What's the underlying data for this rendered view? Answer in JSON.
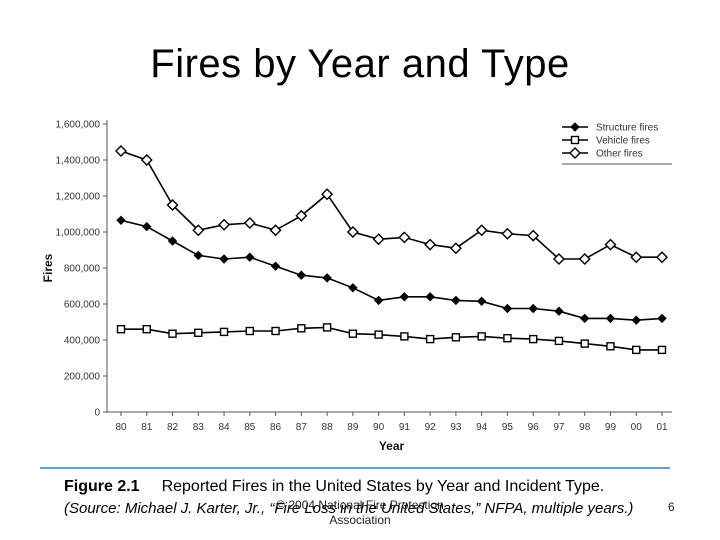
{
  "slide": {
    "title": "Fires by Year and Type",
    "caption_figure": "Figure 2.1",
    "caption_text": "Reported Fires in the United States by Year and Incident Type.",
    "caption_source": "(Source: Michael J. Karter, Jr., “Fire Loss in the United States,” NFPA, multiple years.)",
    "copyright_line1": "© 2004 National Fire Protection",
    "copyright_line2": "Association",
    "page_number": "6"
  },
  "chart_data": {
    "type": "line",
    "title": "",
    "xlabel": "Year",
    "ylabel": "Fires",
    "categories": [
      "80",
      "81",
      "82",
      "83",
      "84",
      "85",
      "86",
      "87",
      "88",
      "89",
      "90",
      "91",
      "92",
      "93",
      "94",
      "95",
      "96",
      "97",
      "98",
      "99",
      "00",
      "01"
    ],
    "y_ticks": [
      0,
      200000,
      400000,
      600000,
      800000,
      1000000,
      1200000,
      1400000,
      1600000
    ],
    "y_tick_labels": [
      "0",
      "200,000",
      "400,000",
      "600,000",
      "800,000",
      "1,000,000",
      "1,200,000",
      "1,400,000",
      "1,600,000"
    ],
    "ylim": [
      0,
      1600000
    ],
    "grid": false,
    "legend_position": "top-right",
    "series": [
      {
        "name": "Structure fires",
        "marker": "filled-diamond",
        "values": [
          1065000,
          1030000,
          950000,
          870000,
          850000,
          860000,
          810000,
          760000,
          745000,
          690000,
          620000,
          640000,
          640000,
          620000,
          615000,
          575000,
          575000,
          560000,
          520000,
          520000,
          510000,
          520000
        ]
      },
      {
        "name": "Vehicle fires",
        "marker": "open-square",
        "values": [
          460000,
          460000,
          435000,
          440000,
          445000,
          450000,
          450000,
          465000,
          470000,
          435000,
          430000,
          420000,
          405000,
          415000,
          420000,
          410000,
          405000,
          395000,
          380000,
          365000,
          345000,
          345000
        ]
      },
      {
        "name": "Other fires",
        "marker": "open-diamond",
        "values": [
          1450000,
          1400000,
          1150000,
          1010000,
          1040000,
          1050000,
          1010000,
          1090000,
          1210000,
          1000000,
          960000,
          970000,
          930000,
          910000,
          1010000,
          990000,
          980000,
          850000,
          850000,
          930000,
          860000,
          860000
        ]
      }
    ],
    "colors": {
      "line": "#000000",
      "axis": "#555555"
    }
  }
}
